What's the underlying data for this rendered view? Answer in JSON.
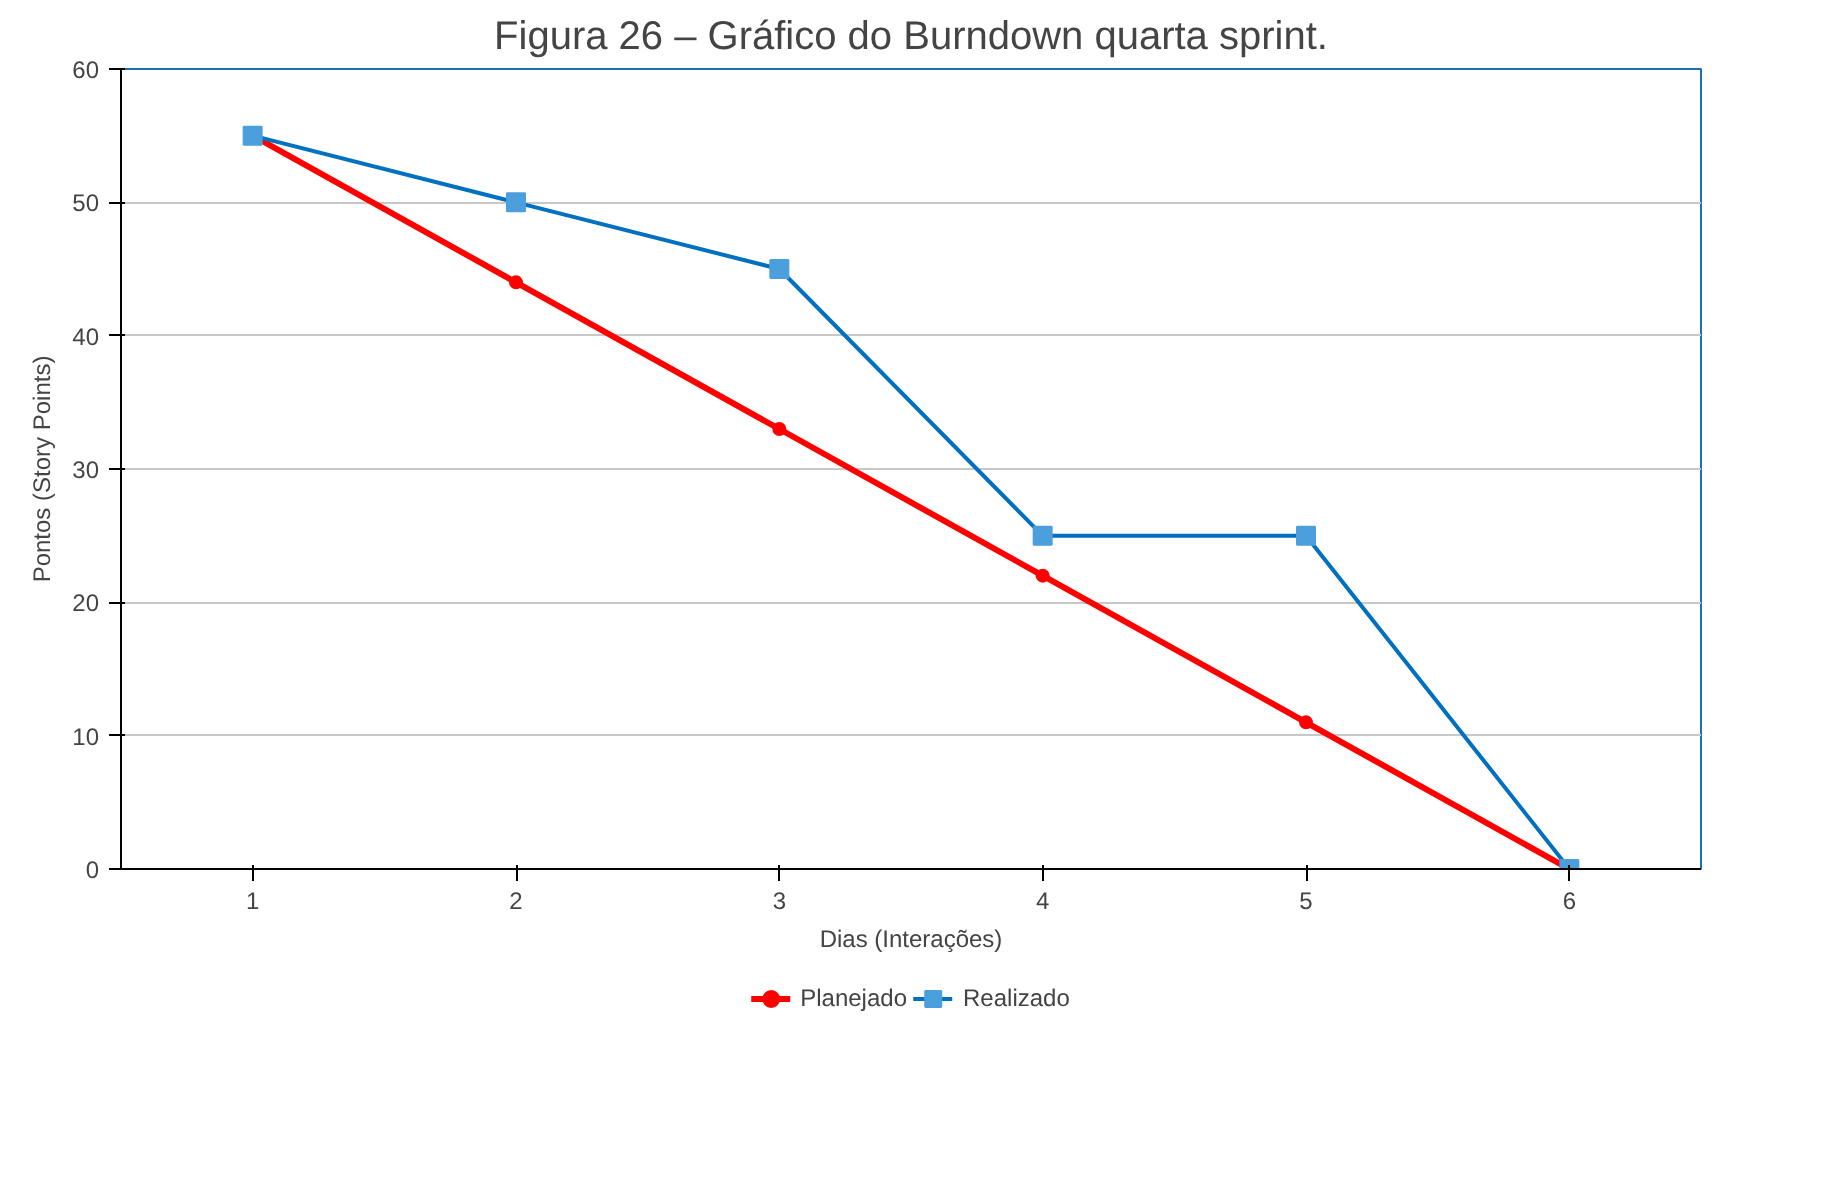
{
  "chart_data": {
    "type": "line",
    "title": "Figura 26 – Gráfico do Burndown quarta sprint.",
    "xlabel": "Dias (Interações)",
    "ylabel": "Pontos (Story Points)",
    "categories": [
      "1",
      "2",
      "3",
      "4",
      "5",
      "6"
    ],
    "series": [
      {
        "name": "Planejado",
        "color": "#ff0000",
        "marker": "circle",
        "values": [
          55,
          44,
          33,
          22,
          11,
          0
        ]
      },
      {
        "name": "Realizado",
        "color": "#0070c0",
        "marker": "square",
        "values": [
          55,
          50,
          45,
          25,
          25,
          0
        ]
      }
    ],
    "ylim": [
      0,
      60
    ],
    "yticks": [
      0,
      10,
      20,
      30,
      40,
      50,
      60
    ],
    "grid": "y",
    "legend": "bottom"
  }
}
